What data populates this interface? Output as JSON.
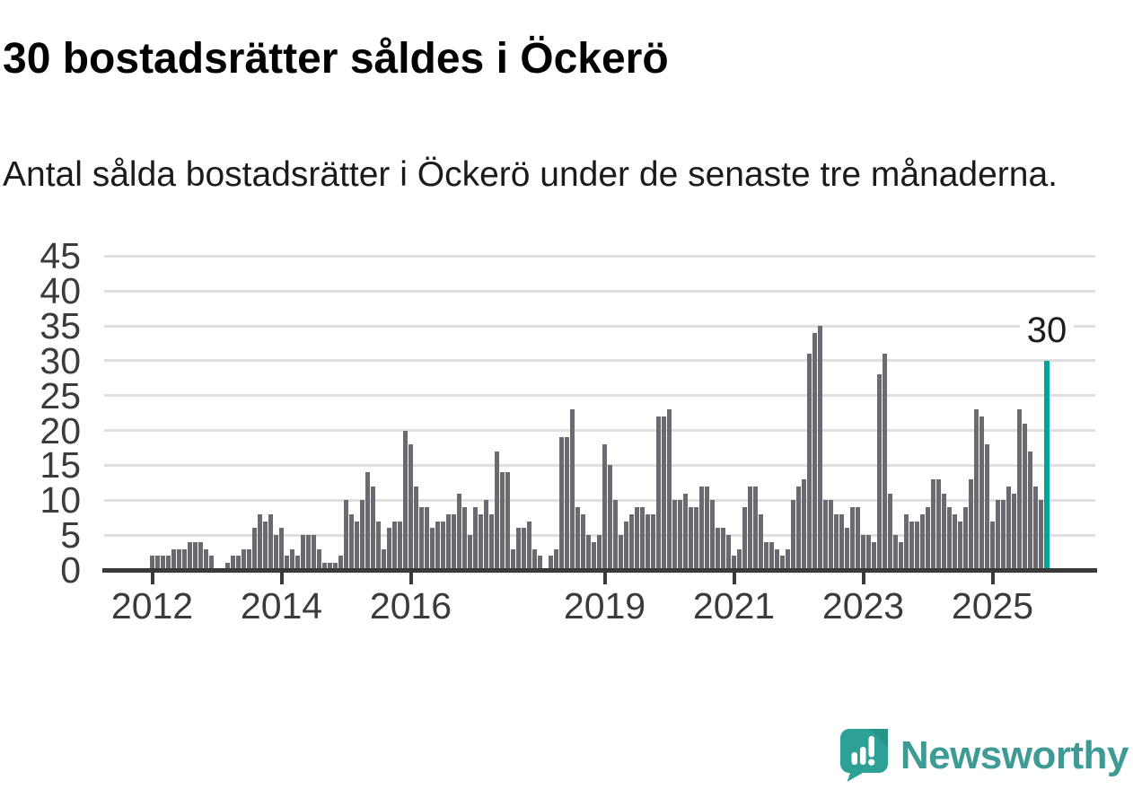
{
  "title": "30 bostadsrätter såldes i Öckerö",
  "subtitle": "Antal sålda bostadsrätter i Öckerö under de senaste tre månaderna.",
  "annotation": {
    "label": "30"
  },
  "logo": {
    "text": "Newsworthy",
    "icon": "newsworthy-badge-icon"
  },
  "colors": {
    "bar": "#6a6a72",
    "highlight": "#00a49b",
    "grid": "#dfdfdf",
    "axis": "#3a3a3a",
    "tick_label": "#3b3b3b",
    "logo_teal": "#3e9a94"
  },
  "chart_data": {
    "type": "bar",
    "title": "30 bostadsrätter såldes i Öckerö",
    "xlabel": "",
    "ylabel": "",
    "x_start": "2012-01",
    "x_interval": "month",
    "grid": "horizontal",
    "legend": "none",
    "ylim": [
      0,
      47
    ],
    "y_ticks": [
      0,
      5,
      10,
      15,
      20,
      25,
      30,
      35,
      40,
      45
    ],
    "x_ticks": [
      {
        "label": "2012",
        "month_index": 0
      },
      {
        "label": "2014",
        "month_index": 24
      },
      {
        "label": "2016",
        "month_index": 48
      },
      {
        "label": "2019",
        "month_index": 84
      },
      {
        "label": "2021",
        "month_index": 108
      },
      {
        "label": "2023",
        "month_index": 132
      },
      {
        "label": "2025",
        "month_index": 156
      }
    ],
    "values": [
      2,
      2,
      2,
      2,
      3,
      3,
      3,
      4,
      4,
      4,
      3,
      2,
      0,
      0,
      1,
      2,
      2,
      3,
      3,
      6,
      8,
      7,
      8,
      5,
      6,
      2,
      3,
      2,
      5,
      5,
      5,
      3,
      1,
      1,
      1,
      2,
      10,
      8,
      7,
      10,
      14,
      12,
      7,
      3,
      6,
      7,
      7,
      20,
      18,
      12,
      9,
      9,
      6,
      7,
      7,
      8,
      8,
      11,
      9,
      5,
      9,
      8,
      10,
      8,
      17,
      14,
      14,
      3,
      6,
      6,
      7,
      3,
      2,
      0,
      2,
      3,
      19,
      19,
      23,
      9,
      8,
      5,
      4,
      5,
      18,
      15,
      10,
      5,
      7,
      8,
      9,
      9,
      8,
      8,
      22,
      22,
      23,
      10,
      10,
      11,
      9,
      9,
      12,
      12,
      10,
      6,
      6,
      5,
      2,
      3,
      9,
      12,
      12,
      8,
      4,
      4,
      3,
      2,
      3,
      10,
      12,
      13,
      31,
      34,
      35,
      10,
      10,
      8,
      8,
      6,
      9,
      9,
      5,
      5,
      4,
      28,
      31,
      11,
      5,
      4,
      8,
      7,
      7,
      8,
      9,
      13,
      13,
      11,
      9,
      8,
      7,
      9,
      13,
      23,
      22,
      18,
      7,
      10,
      10,
      12,
      11,
      23,
      21,
      17,
      12,
      10
    ],
    "highlight": {
      "x": "2025-11",
      "month_index": 166,
      "value": 30,
      "label": "30"
    }
  }
}
